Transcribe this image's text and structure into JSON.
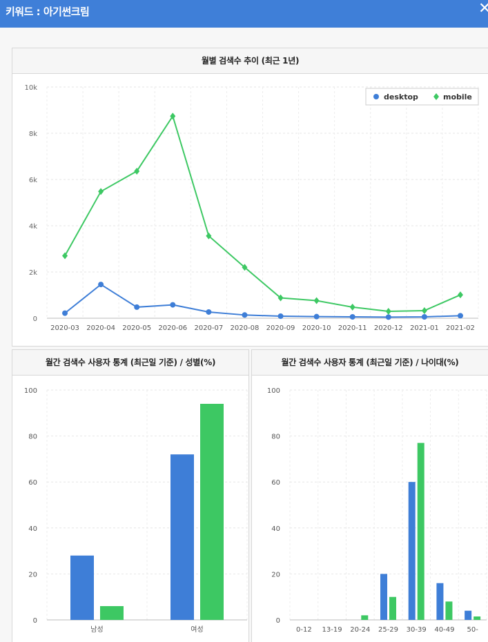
{
  "header": {
    "title": "키워드 : 아기썬크림",
    "close_icon": "close-icon"
  },
  "colors": {
    "desktop": "#3e7ed7",
    "mobile": "#3dc863",
    "header_bg": "#3f7fd8"
  },
  "chart_data": [
    {
      "type": "line",
      "title": "월별 검색수 추이 (최근 1년)",
      "x": [
        "2020-03",
        "2020-04",
        "2020-05",
        "2020-06",
        "2020-07",
        "2020-08",
        "2020-09",
        "2020-10",
        "2020-11",
        "2020-12",
        "2021-01",
        "2021-02"
      ],
      "series": [
        {
          "name": "desktop",
          "values": [
            220,
            1460,
            480,
            580,
            270,
            140,
            90,
            70,
            60,
            50,
            60,
            110
          ]
        },
        {
          "name": "mobile",
          "values": [
            2700,
            5480,
            6360,
            8740,
            3560,
            2200,
            880,
            760,
            480,
            300,
            330,
            1010
          ]
        }
      ],
      "ylim": [
        0,
        10000
      ],
      "yticks": [
        0,
        2000,
        4000,
        6000,
        8000,
        10000
      ],
      "ytick_labels": [
        "0",
        "2k",
        "4k",
        "6k",
        "8k",
        "10k"
      ],
      "legend": "top-right",
      "grid": true
    },
    {
      "type": "bar",
      "title": "월간 검색수 사용자 통계 (최근일 기준) / 성별(%)",
      "categories": [
        "남성",
        "여성"
      ],
      "series": [
        {
          "values": [
            28,
            72
          ]
        },
        {
          "values": [
            6,
            94
          ]
        }
      ],
      "ylim": [
        0,
        100
      ],
      "yticks": [
        0,
        20,
        40,
        60,
        80,
        100
      ],
      "grid": true
    },
    {
      "type": "bar",
      "title": "월간 검색수 사용자 통계 (최근일 기준) / 나이대(%)",
      "categories": [
        "0-12",
        "13-19",
        "20-24",
        "25-29",
        "30-39",
        "40-49",
        "50-"
      ],
      "series": [
        {
          "values": [
            0,
            0,
            0,
            20,
            60,
            16,
            4
          ]
        },
        {
          "values": [
            0,
            0,
            2,
            10,
            77,
            8,
            1.5
          ]
        }
      ],
      "ylim": [
        0,
        100
      ],
      "yticks": [
        0,
        20,
        40,
        60,
        80,
        100
      ],
      "grid": true
    }
  ]
}
